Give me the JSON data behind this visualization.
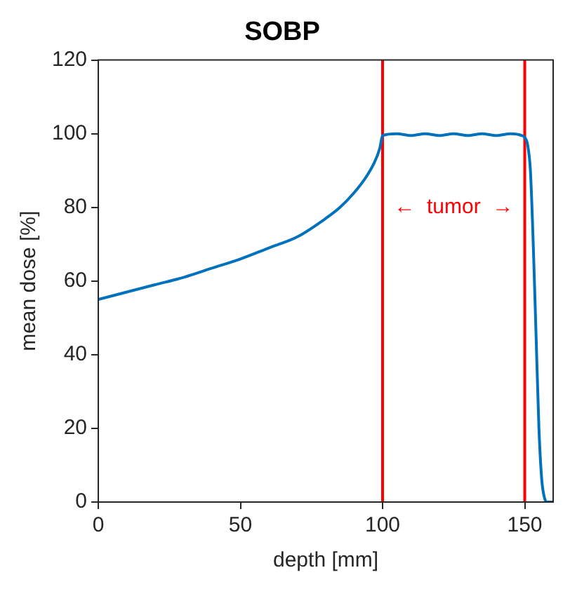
{
  "chart_data": {
    "type": "line",
    "title": "SOBP",
    "xlabel": "depth [mm]",
    "ylabel": "mean dose [%]",
    "x": [
      0,
      10,
      20,
      30,
      40,
      50,
      60,
      70,
      80,
      85,
      90,
      94,
      97,
      99,
      100,
      105,
      110,
      115,
      120,
      125,
      130,
      135,
      140,
      145,
      149,
      150,
      151,
      152,
      153,
      154,
      155,
      156,
      157,
      158,
      160
    ],
    "series": [
      {
        "color": "#0072bd",
        "values": [
          55,
          57,
          59,
          61,
          63.5,
          66,
          69,
          72,
          77,
          80,
          84,
          88,
          92,
          96,
          99.5,
          100,
          99.5,
          100,
          99.5,
          100,
          99.5,
          100,
          99.5,
          100,
          99.5,
          99,
          97,
          90,
          70,
          45,
          20,
          6,
          1,
          0,
          0
        ]
      }
    ],
    "xlim": [
      0,
      160
    ],
    "ylim": [
      0,
      120
    ],
    "xticks": [
      0,
      50,
      100,
      150
    ],
    "yticks": [
      0,
      20,
      40,
      60,
      80,
      100,
      120
    ],
    "grid": false,
    "legend": false,
    "marker": "none",
    "line_style": "solid",
    "ref_lines": [
      {
        "axis": "x",
        "value": 100,
        "color": "#ff0000"
      },
      {
        "axis": "x",
        "value": 150,
        "color": "#ff0000"
      }
    ],
    "annotations": [
      "←  tumor  →"
    ]
  }
}
